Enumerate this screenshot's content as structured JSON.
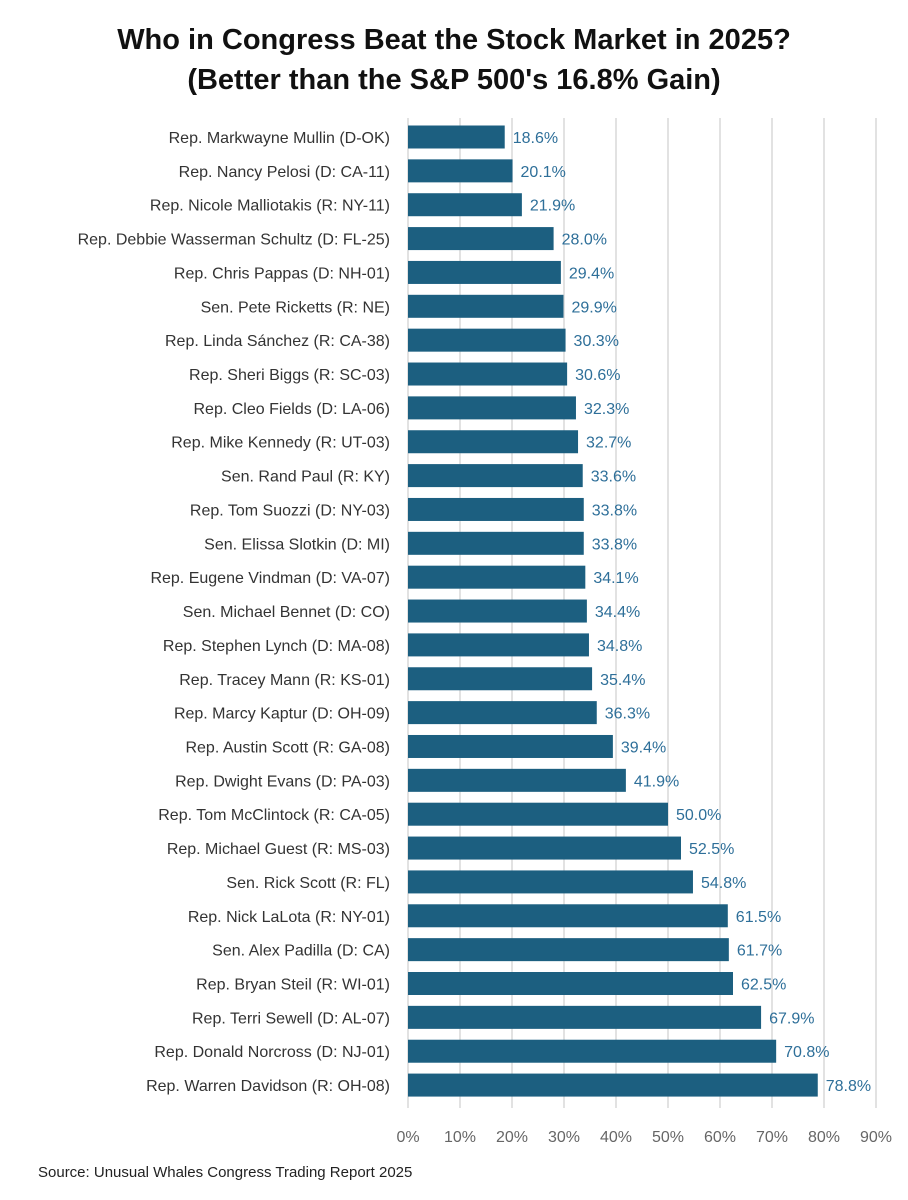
{
  "chart_data": {
    "type": "bar",
    "orientation": "horizontal",
    "title": "Who in Congress Beat the Stock Market in 2025?",
    "subtitle": "(Better than the S&P 500's 16.8% Gain)",
    "source": "Source: Unusual Whales Congress Trading Report 2025",
    "categories": [
      "Rep. Markwayne Mullin (D-OK)",
      "Rep. Nancy Pelosi (D: CA-11)",
      "Rep. Nicole Malliotakis (R: NY-11)",
      "Rep. Debbie Wasserman Schultz (D: FL-25)",
      "Rep. Chris Pappas (D: NH-01)",
      "Sen. Pete Ricketts (R: NE)",
      "Rep. Linda Sánchez (R: CA-38)",
      "Rep. Sheri Biggs (R: SC-03)",
      "Rep. Cleo Fields (D: LA-06)",
      "Rep. Mike Kennedy (R: UT-03)",
      "Sen. Rand Paul (R: KY)",
      "Rep. Tom Suozzi (D: NY-03)",
      "Sen. Elissa Slotkin (D: MI)",
      "Rep. Eugene Vindman (D: VA-07)",
      "Sen. Michael Bennet (D: CO)",
      "Rep. Stephen Lynch (D: MA-08)",
      "Rep. Tracey Mann (R: KS-01)",
      "Rep. Marcy Kaptur (D: OH-09)",
      "Rep. Austin Scott (R: GA-08)",
      "Rep. Dwight Evans (D: PA-03)",
      "Rep. Tom McClintock (R: CA-05)",
      "Rep. Michael Guest (R: MS-03)",
      "Sen. Rick Scott (R: FL)",
      "Rep. Nick LaLota (R: NY-01)",
      "Sen. Alex Padilla (D: CA)",
      "Rep. Bryan Steil (R: WI-01)",
      "Rep. Terri Sewell (D: AL-07)",
      "Rep. Donald Norcross (D: NJ-01)",
      "Rep. Warren Davidson (R: OH-08)"
    ],
    "values": [
      18.6,
      20.1,
      21.9,
      28.0,
      29.4,
      29.9,
      30.3,
      30.6,
      32.3,
      32.7,
      33.6,
      33.8,
      33.8,
      34.1,
      34.4,
      34.8,
      35.4,
      36.3,
      39.4,
      41.9,
      50.0,
      52.5,
      54.8,
      61.5,
      61.7,
      62.5,
      67.9,
      70.8,
      78.8
    ],
    "value_labels": [
      "18.6%",
      "20.1%",
      "21.9%",
      "28.0%",
      "29.4%",
      "29.9%",
      "30.3%",
      "30.6%",
      "32.3%",
      "32.7%",
      "33.6%",
      "33.8%",
      "33.8%",
      "34.1%",
      "34.4%",
      "34.8%",
      "35.4%",
      "36.3%",
      "39.4%",
      "41.9%",
      "50.0%",
      "52.5%",
      "54.8%",
      "61.5%",
      "61.7%",
      "62.5%",
      "67.9%",
      "70.8%",
      "78.8%"
    ],
    "xticks": [
      0,
      10,
      20,
      30,
      40,
      50,
      60,
      70,
      80,
      90
    ],
    "xtick_labels": [
      "0%",
      "10%",
      "20%",
      "30%",
      "40%",
      "50%",
      "60%",
      "70%",
      "80%",
      "90%"
    ],
    "xlim": [
      0,
      90
    ],
    "grid": "vertical",
    "legend": "none",
    "colors": {
      "bar": "#1c5f80",
      "value_label": "#2e6f99",
      "grid": "#d9d9d9"
    }
  }
}
